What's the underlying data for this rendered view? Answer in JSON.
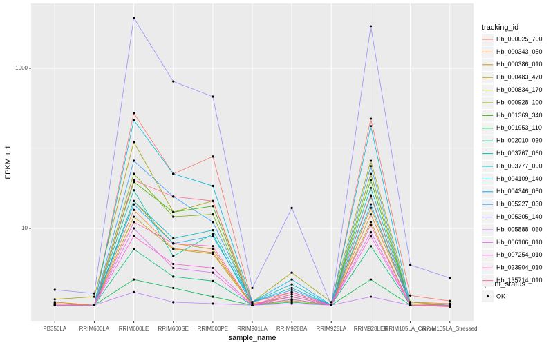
{
  "chart_data": {
    "type": "line",
    "x_label": "sample_name",
    "y_label": "FPKM + 1",
    "legend_title": "tracking_id",
    "legend_position": "right",
    "log_y": true,
    "grid": true,
    "categories": [
      "PB350LA",
      "RRIM600LA",
      "RRIM600LE",
      "RRIM600SE",
      "RRIM600PE",
      "RRIM901LA",
      "RRIM928BA",
      "RRIM928LA",
      "RRIM928LER",
      "RRIM105LA_Control",
      "RRIM105LA_Stressed"
    ],
    "ylim": [
      0.7,
      6460
    ],
    "yticks": [
      10,
      1000
    ],
    "point_legend_title": "quant_status",
    "point_legend_label": "OK",
    "point_color": "#000000",
    "series": [
      {
        "name": "Hb_000025_700",
        "color": "#F8766D",
        "values": [
          1.2,
          1.1,
          276,
          48,
          79,
          1.2,
          1.6,
          1.1,
          235,
          1.45,
          1.24
        ]
      },
      {
        "name": "Hb_000343_050",
        "color": "#EA8331",
        "values": [
          1.15,
          1.1,
          17,
          5.6,
          5.0,
          1.15,
          1.4,
          1.1,
          15,
          1.2,
          1.15
        ]
      },
      {
        "name": "Hb_000386_010",
        "color": "#D89000",
        "values": [
          1.2,
          1.1,
          22,
          6.5,
          5.5,
          1.1,
          1.3,
          1.1,
          18,
          1.15,
          1.1
        ]
      },
      {
        "name": "Hb_000483_470",
        "color": "#C09B00",
        "values": [
          1.1,
          1.1,
          14,
          5.5,
          4.8,
          1.1,
          1.25,
          1.1,
          12,
          1.1,
          1.1
        ]
      },
      {
        "name": "Hb_000834_170",
        "color": "#A3A500",
        "values": [
          1.3,
          1.4,
          120,
          16,
          22,
          1.2,
          2.8,
          1.2,
          70,
          1.2,
          1.1
        ]
      },
      {
        "name": "Hb_000928_100",
        "color": "#7CAE00",
        "values": [
          1.1,
          1.1,
          48,
          14,
          15,
          1.1,
          1.3,
          1.1,
          48,
          1.1,
          1.1
        ]
      },
      {
        "name": "Hb_001369_340",
        "color": "#39B600",
        "values": [
          1.1,
          1.1,
          38,
          16,
          19,
          1.1,
          1.4,
          1.1,
          40,
          1.1,
          1.1
        ]
      },
      {
        "name": "Hb_001953_110",
        "color": "#00BB4E",
        "values": [
          1.1,
          1.1,
          2.3,
          1.8,
          1.4,
          1.1,
          1.2,
          1.1,
          2.3,
          1.1,
          1.1
        ]
      },
      {
        "name": "Hb_002010_030",
        "color": "#00BF7D",
        "values": [
          1.1,
          1.1,
          5.5,
          2.5,
          2.2,
          1.1,
          1.3,
          1.1,
          6.0,
          1.1,
          1.1
        ]
      },
      {
        "name": "Hb_003767_060",
        "color": "#00C1A3",
        "values": [
          1.1,
          1.1,
          30,
          4.5,
          8.5,
          1.1,
          1.5,
          1.1,
          25,
          1.1,
          1.1
        ]
      },
      {
        "name": "Hb_003777_090",
        "color": "#00BFC4",
        "values": [
          1.1,
          1.1,
          22,
          7.5,
          9.5,
          1.2,
          2.0,
          1.1,
          32,
          1.1,
          1.1
        ]
      },
      {
        "name": "Hb_004109_140",
        "color": "#00BAE0",
        "values": [
          1.1,
          1.1,
          225,
          48,
          34,
          1.2,
          1.8,
          1.1,
          190,
          1.1,
          1.1
        ]
      },
      {
        "name": "Hb_004346_050",
        "color": "#00B0F6",
        "values": [
          1.1,
          1.1,
          20,
          6.5,
          8.0,
          1.2,
          2.3,
          1.1,
          20,
          1.1,
          1.1
        ]
      },
      {
        "name": "Hb_005227_030",
        "color": "#35A2FF",
        "values": [
          1.1,
          1.1,
          70,
          25,
          12,
          1.2,
          1.7,
          1.1,
          60,
          1.1,
          1.1
        ]
      },
      {
        "name": "Hb_005305_140",
        "color": "#9590FF",
        "values": [
          1.71,
          1.54,
          4270,
          685,
          443,
          1.8,
          18,
          1.1,
          3360,
          3.5,
          2.4
        ]
      },
      {
        "name": "Hb_005888_060",
        "color": "#C77CFF",
        "values": [
          1.1,
          1.1,
          1.6,
          1.2,
          1.15,
          1.1,
          1.15,
          1.1,
          1.4,
          1.1,
          1.1
        ]
      },
      {
        "name": "Hb_006106_010",
        "color": "#E76BF3",
        "values": [
          1.1,
          1.1,
          10,
          3.2,
          2.8,
          1.1,
          1.3,
          1.1,
          9,
          1.1,
          1.1
        ]
      },
      {
        "name": "Hb_007254_010",
        "color": "#FA62DB",
        "values": [
          1.1,
          1.1,
          8,
          3.6,
          3.2,
          1.1,
          1.4,
          1.1,
          8,
          1.1,
          1.1
        ]
      },
      {
        "name": "Hb_023904_010",
        "color": "#FF62BC",
        "values": [
          1.1,
          1.1,
          12,
          6.5,
          6,
          1.1,
          1.5,
          1.1,
          11,
          1.1,
          1.1
        ]
      },
      {
        "name": "Hb_135714_010",
        "color": "#FF6C91",
        "values": [
          1.15,
          1.1,
          40,
          25,
          22,
          1.1,
          1.6,
          1.1,
          26,
          1.1,
          1.05
        ]
      }
    ]
  }
}
